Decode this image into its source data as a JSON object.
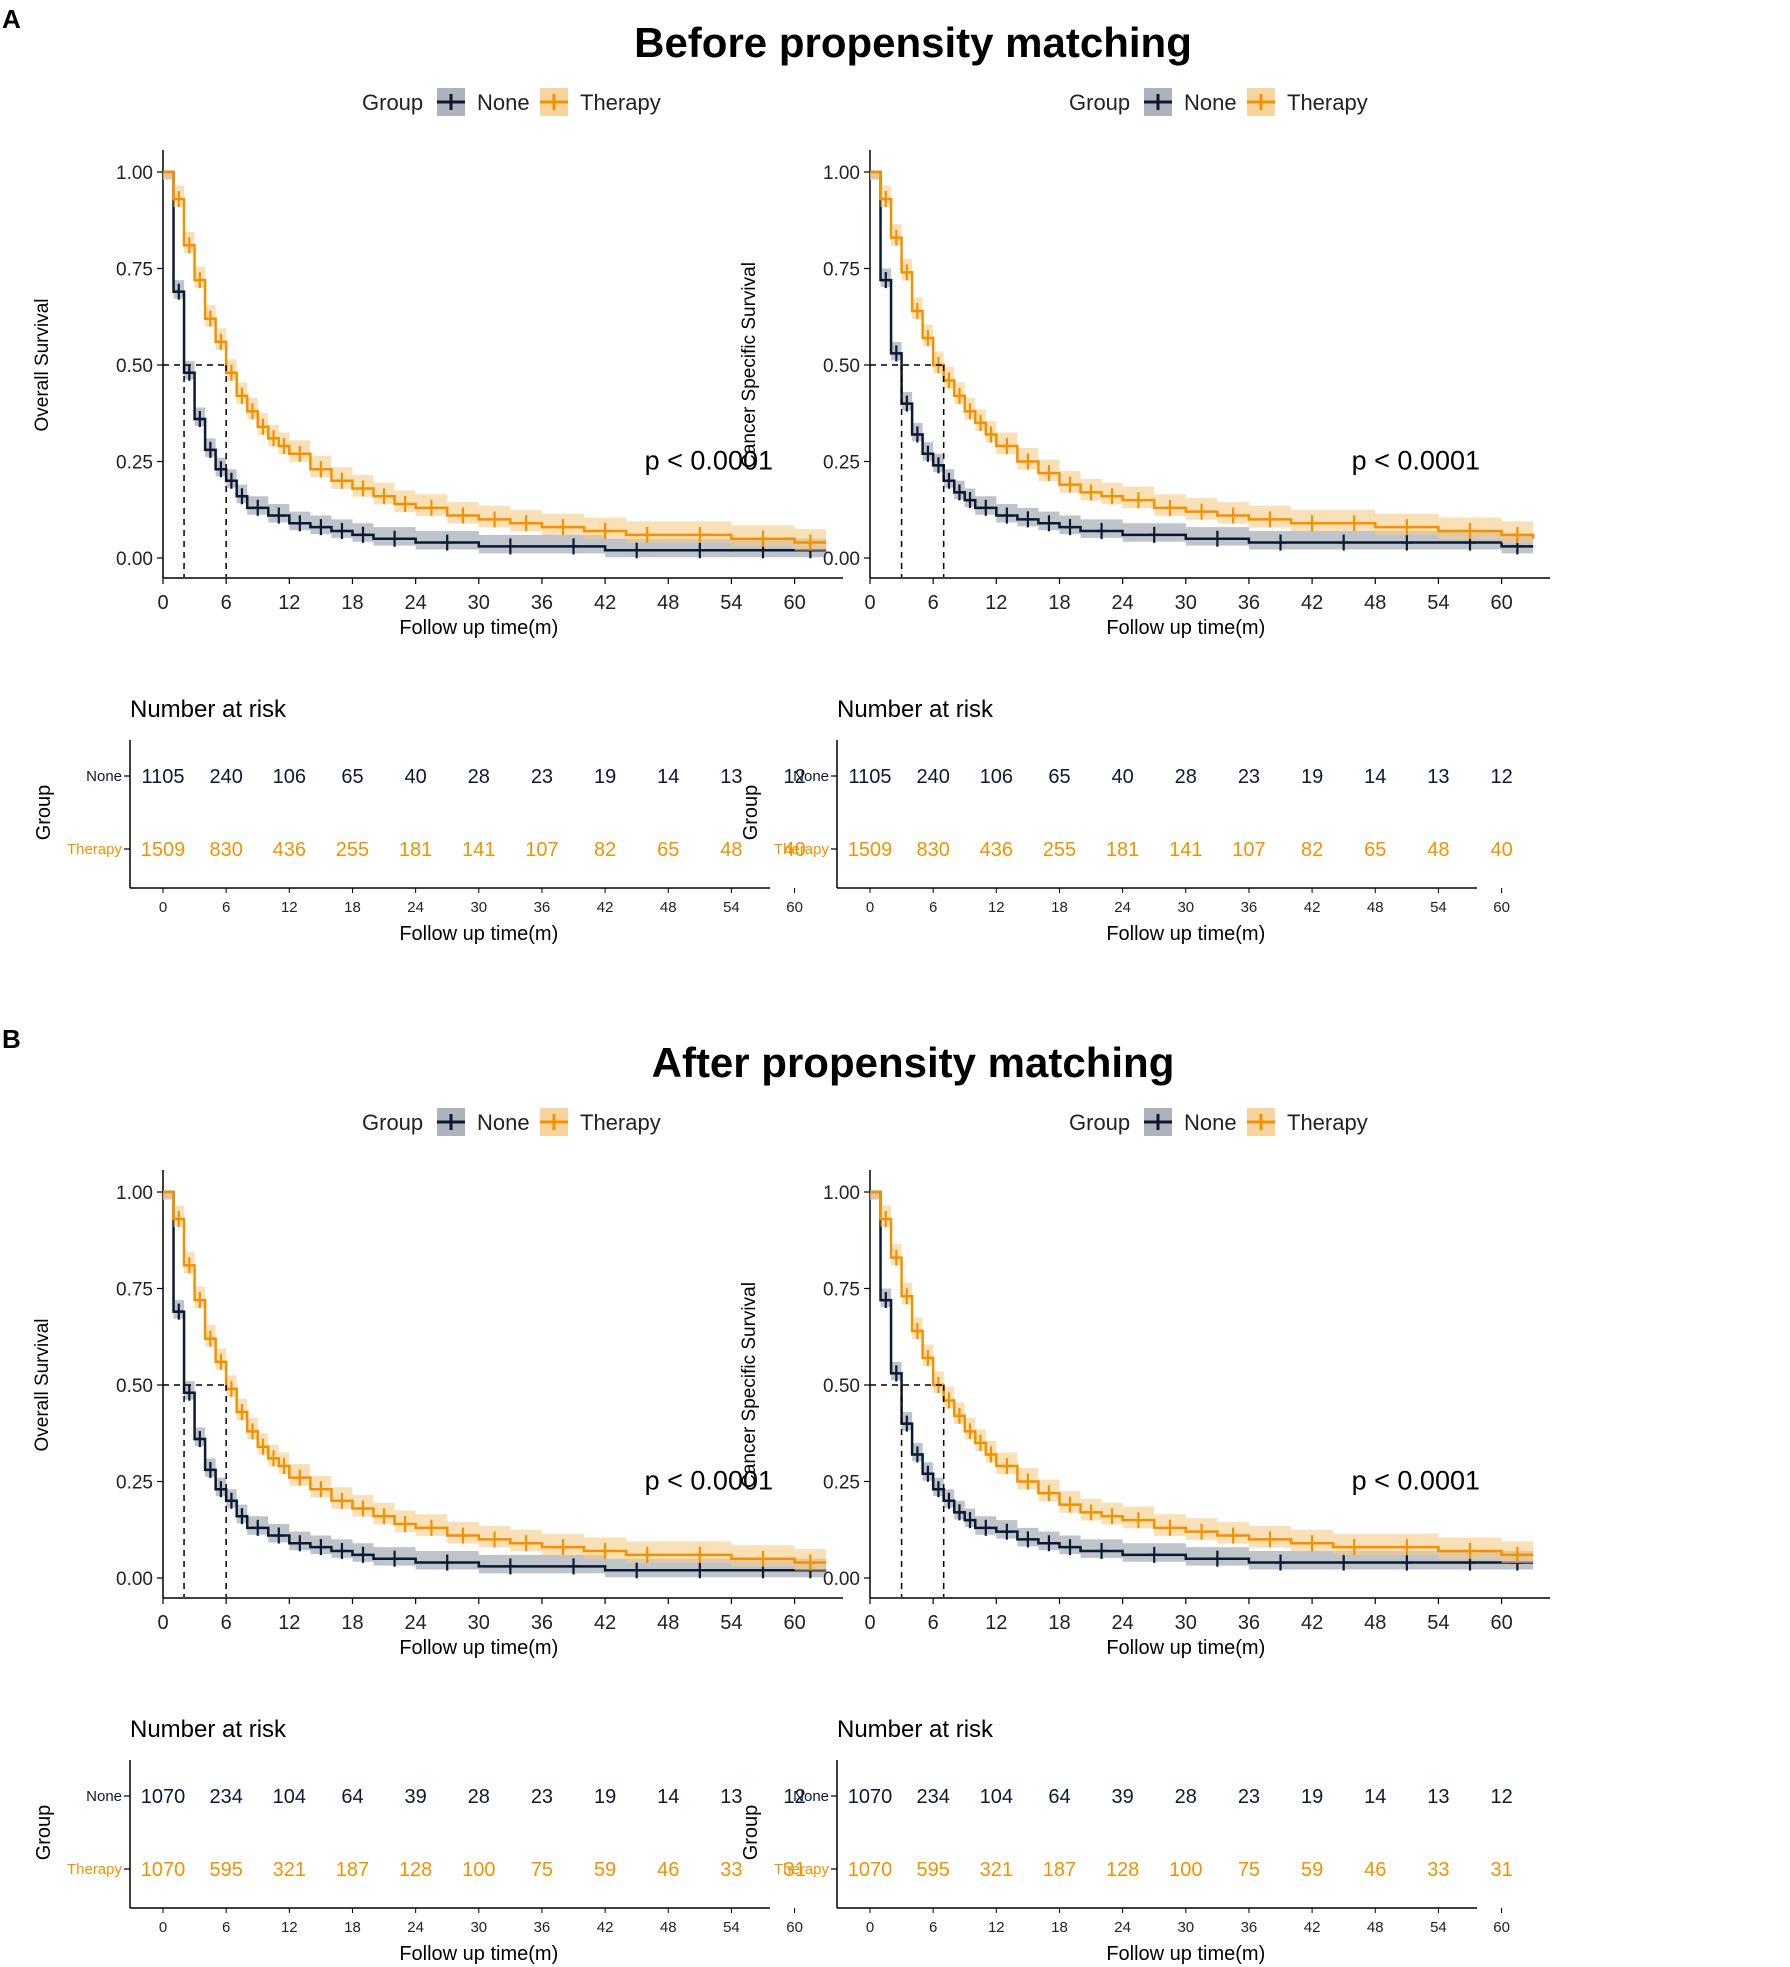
{
  "colors": {
    "none": "#0b1a33",
    "therapy": "#f29200",
    "none_ci": "#8a929f",
    "therapy_ci": "#f6cb87"
  },
  "sections": [
    {
      "letter": "A",
      "title": "Before propensity matching",
      "plots": [
        {
          "ylabel": "Overall Survival",
          "pvalue": "p < 0.0001",
          "risk_none": [
            "1105",
            "240",
            "106",
            "65",
            "40",
            "28",
            "23",
            "19",
            "14",
            "13",
            "12"
          ],
          "risk_therapy": [
            "1509",
            "830",
            "436",
            "255",
            "181",
            "141",
            "107",
            "82",
            "65",
            "48",
            "40"
          ]
        },
        {
          "ylabel": "Cancer Specific Survival",
          "pvalue": "p < 0.0001",
          "risk_none": [
            "1105",
            "240",
            "106",
            "65",
            "40",
            "28",
            "23",
            "19",
            "14",
            "13",
            "12"
          ],
          "risk_therapy": [
            "1509",
            "830",
            "436",
            "255",
            "181",
            "141",
            "107",
            "82",
            "65",
            "48",
            "40"
          ]
        }
      ]
    },
    {
      "letter": "B",
      "title": "After propensity matching",
      "plots": [
        {
          "ylabel": "Overall Survival",
          "pvalue": "p < 0.0001",
          "risk_none": [
            "1070",
            "234",
            "104",
            "64",
            "39",
            "28",
            "23",
            "19",
            "14",
            "13",
            "12"
          ],
          "risk_therapy": [
            "1070",
            "595",
            "321",
            "187",
            "128",
            "100",
            "75",
            "59",
            "46",
            "33",
            "31"
          ]
        },
        {
          "ylabel": "Cancer Specific Survival",
          "pvalue": "p < 0.0001",
          "risk_none": [
            "1070",
            "234",
            "104",
            "64",
            "39",
            "28",
            "23",
            "19",
            "14",
            "13",
            "12"
          ],
          "risk_therapy": [
            "1070",
            "595",
            "321",
            "187",
            "128",
            "100",
            "75",
            "59",
            "46",
            "33",
            "31"
          ]
        }
      ]
    }
  ],
  "shared": {
    "legend_group": "Group",
    "legend_none": "None",
    "legend_therapy": "Therapy",
    "xlabel": "Follow up time(m)",
    "risk_title": "Number at risk",
    "risk_ylabel": "Group",
    "risk_row_none": "None",
    "risk_row_therapy": "Therapy",
    "yticks": [
      "0.00",
      "0.25",
      "0.50",
      "0.75",
      "1.00"
    ],
    "xticks": [
      "0",
      "6",
      "12",
      "18",
      "24",
      "30",
      "36",
      "42",
      "48",
      "54",
      "60"
    ]
  },
  "chart_data": [
    {
      "type": "line",
      "id": "os_before",
      "title": "Before propensity matching",
      "xlabel": "Follow up time(m)",
      "ylabel": "Overall Survival",
      "xlim": [
        0,
        63
      ],
      "ylim": [
        0,
        1
      ],
      "series": [
        {
          "name": "None",
          "x": [
            0,
            1,
            2,
            3,
            4,
            5,
            6,
            7,
            8,
            10,
            12,
            14,
            16,
            18,
            20,
            24,
            30,
            36,
            42,
            48,
            54,
            60,
            63
          ],
          "y": [
            1.0,
            0.69,
            0.48,
            0.36,
            0.28,
            0.23,
            0.2,
            0.16,
            0.13,
            0.11,
            0.09,
            0.08,
            0.07,
            0.06,
            0.05,
            0.04,
            0.03,
            0.03,
            0.02,
            0.02,
            0.02,
            0.02,
            0.02
          ]
        },
        {
          "name": "Therapy",
          "x": [
            0,
            1,
            2,
            3,
            4,
            5,
            6,
            7,
            8,
            9,
            10,
            11,
            12,
            14,
            16,
            18,
            20,
            22,
            24,
            27,
            30,
            33,
            36,
            40,
            44,
            48,
            54,
            60,
            63
          ],
          "y": [
            1.0,
            0.93,
            0.81,
            0.72,
            0.62,
            0.56,
            0.48,
            0.42,
            0.38,
            0.34,
            0.31,
            0.29,
            0.27,
            0.23,
            0.2,
            0.18,
            0.16,
            0.14,
            0.13,
            0.11,
            0.1,
            0.09,
            0.08,
            0.07,
            0.06,
            0.06,
            0.05,
            0.04,
            0.04
          ]
        }
      ],
      "median_survival": {
        "None": 2,
        "Therapy": 6
      },
      "pvalue": "p < 0.0001"
    },
    {
      "type": "line",
      "id": "css_before",
      "title": "Before propensity matching",
      "xlabel": "Follow up time(m)",
      "ylabel": "Cancer Specific Survival",
      "xlim": [
        0,
        63
      ],
      "ylim": [
        0,
        1
      ],
      "series": [
        {
          "name": "None",
          "x": [
            0,
            1,
            2,
            3,
            4,
            5,
            6,
            7,
            8,
            9,
            10,
            12,
            14,
            16,
            18,
            20,
            24,
            30,
            36,
            42,
            48,
            54,
            60,
            63
          ],
          "y": [
            1.0,
            0.72,
            0.53,
            0.4,
            0.32,
            0.27,
            0.24,
            0.2,
            0.17,
            0.15,
            0.13,
            0.11,
            0.1,
            0.09,
            0.08,
            0.07,
            0.06,
            0.05,
            0.04,
            0.04,
            0.04,
            0.04,
            0.03,
            0.03
          ]
        },
        {
          "name": "Therapy",
          "x": [
            0,
            1,
            2,
            3,
            4,
            5,
            6,
            7,
            8,
            9,
            10,
            11,
            12,
            14,
            16,
            18,
            20,
            22,
            24,
            27,
            30,
            33,
            36,
            40,
            44,
            48,
            54,
            60,
            63
          ],
          "y": [
            1.0,
            0.93,
            0.83,
            0.74,
            0.64,
            0.57,
            0.5,
            0.46,
            0.42,
            0.38,
            0.35,
            0.32,
            0.29,
            0.25,
            0.22,
            0.19,
            0.17,
            0.16,
            0.15,
            0.13,
            0.12,
            0.11,
            0.1,
            0.09,
            0.09,
            0.08,
            0.07,
            0.06,
            0.05
          ]
        }
      ],
      "median_survival": {
        "None": 3,
        "Therapy": 7
      },
      "pvalue": "p < 0.0001"
    },
    {
      "type": "line",
      "id": "os_after",
      "title": "After propensity matching",
      "xlabel": "Follow up time(m)",
      "ylabel": "Overall Survival",
      "xlim": [
        0,
        63
      ],
      "ylim": [
        0,
        1
      ],
      "series": [
        {
          "name": "None",
          "x": [
            0,
            1,
            2,
            3,
            4,
            5,
            6,
            7,
            8,
            10,
            12,
            14,
            16,
            18,
            20,
            24,
            30,
            36,
            42,
            48,
            54,
            60,
            63
          ],
          "y": [
            1.0,
            0.69,
            0.48,
            0.36,
            0.28,
            0.23,
            0.2,
            0.16,
            0.13,
            0.11,
            0.09,
            0.08,
            0.07,
            0.06,
            0.05,
            0.04,
            0.03,
            0.03,
            0.02,
            0.02,
            0.02,
            0.02,
            0.02
          ]
        },
        {
          "name": "Therapy",
          "x": [
            0,
            1,
            2,
            3,
            4,
            5,
            6,
            7,
            8,
            9,
            10,
            11,
            12,
            14,
            16,
            18,
            20,
            22,
            24,
            27,
            30,
            33,
            36,
            40,
            44,
            48,
            54,
            60,
            63
          ],
          "y": [
            1.0,
            0.93,
            0.81,
            0.72,
            0.62,
            0.56,
            0.49,
            0.43,
            0.38,
            0.34,
            0.31,
            0.29,
            0.26,
            0.23,
            0.2,
            0.18,
            0.16,
            0.14,
            0.13,
            0.11,
            0.1,
            0.09,
            0.08,
            0.07,
            0.06,
            0.06,
            0.05,
            0.04,
            0.04
          ]
        }
      ],
      "median_survival": {
        "None": 2,
        "Therapy": 6
      },
      "pvalue": "p < 0.0001"
    },
    {
      "type": "line",
      "id": "css_after",
      "title": "After propensity matching",
      "xlabel": "Follow up time(m)",
      "ylabel": "Cancer Specific Survival",
      "xlim": [
        0,
        63
      ],
      "ylim": [
        0,
        1
      ],
      "series": [
        {
          "name": "None",
          "x": [
            0,
            1,
            2,
            3,
            4,
            5,
            6,
            7,
            8,
            9,
            10,
            12,
            14,
            16,
            18,
            20,
            24,
            30,
            36,
            42,
            48,
            54,
            60,
            63
          ],
          "y": [
            1.0,
            0.72,
            0.53,
            0.4,
            0.32,
            0.27,
            0.23,
            0.2,
            0.17,
            0.15,
            0.13,
            0.12,
            0.1,
            0.09,
            0.08,
            0.07,
            0.06,
            0.05,
            0.04,
            0.04,
            0.04,
            0.04,
            0.04,
            0.04
          ]
        },
        {
          "name": "Therapy",
          "x": [
            0,
            1,
            2,
            3,
            4,
            5,
            6,
            7,
            8,
            9,
            10,
            11,
            12,
            14,
            16,
            18,
            20,
            22,
            24,
            27,
            30,
            33,
            36,
            40,
            44,
            48,
            54,
            60,
            63
          ],
          "y": [
            1.0,
            0.93,
            0.83,
            0.73,
            0.64,
            0.57,
            0.5,
            0.46,
            0.42,
            0.38,
            0.35,
            0.32,
            0.29,
            0.25,
            0.22,
            0.19,
            0.17,
            0.16,
            0.15,
            0.13,
            0.12,
            0.11,
            0.1,
            0.09,
            0.08,
            0.08,
            0.07,
            0.06,
            0.06
          ]
        }
      ],
      "median_survival": {
        "None": 3,
        "Therapy": 7
      },
      "pvalue": "p < 0.0001"
    }
  ]
}
